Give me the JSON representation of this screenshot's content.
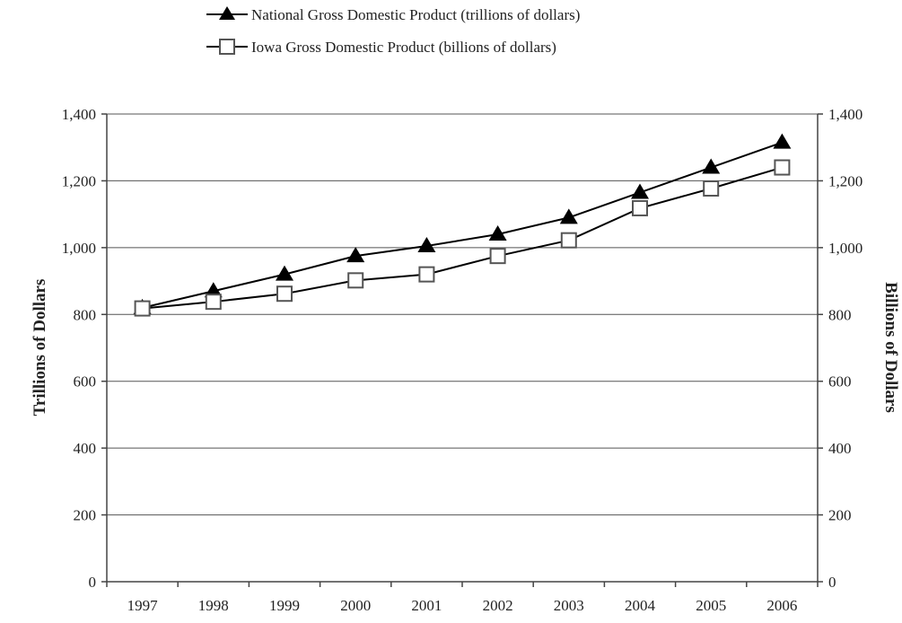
{
  "chart_data": {
    "type": "line",
    "categories": [
      "1997",
      "1998",
      "1999",
      "2000",
      "2001",
      "2002",
      "2003",
      "2004",
      "2005",
      "2006"
    ],
    "series": [
      {
        "name": "National Gross Domestic Product (trillions of dollars)",
        "marker": "filled-triangle",
        "color": "#000000",
        "values": [
          820,
          870,
          920,
          975,
          1005,
          1040,
          1090,
          1165,
          1240,
          1315
        ]
      },
      {
        "name": "Iowa Gross Domestic Product (billions of dollars)",
        "marker": "open-square",
        "color": "#555555",
        "values": [
          818,
          838,
          862,
          902,
          920,
          975,
          1022,
          1118,
          1177,
          1240
        ]
      }
    ],
    "ylabel_left": "Trillions of Dollars",
    "ylabel_right": "Billions of Dollars",
    "ylim": [
      0,
      1400
    ],
    "yticks": [
      "0",
      "200",
      "400",
      "600",
      "800",
      "1,000",
      "1,200",
      "1,400"
    ],
    "ytick_values": [
      0,
      200,
      400,
      600,
      800,
      1000,
      1200,
      1400
    ],
    "grid": true,
    "legend_position": "top-center"
  }
}
